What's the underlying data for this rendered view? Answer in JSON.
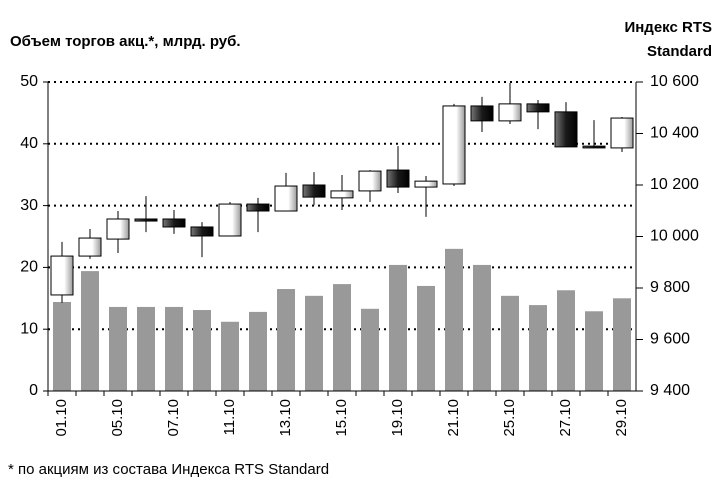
{
  "chart_data": {
    "type": "combo",
    "title": "Объем торгов акц.*, млрд. руб.",
    "y2_title": [
      "Индекс RTS",
      "Standard"
    ],
    "footnote": "* по акциям из состава Индекса RTS Standard",
    "categories": [
      "01.10",
      null,
      "05.10",
      null,
      "07.10",
      null,
      "11.10",
      null,
      "13.10",
      null,
      "15.10",
      null,
      "19.10",
      null,
      "21.10",
      null,
      "25.10",
      null,
      "27.10",
      null,
      "29.10"
    ],
    "ylim": [
      0,
      50
    ],
    "yticks": [
      0,
      10,
      20,
      30,
      40,
      50
    ],
    "y2lim": [
      9400,
      10600
    ],
    "y2ticks": [
      {
        "value": 9400,
        "label": "9 400"
      },
      {
        "value": 9600,
        "label": "9 600"
      },
      {
        "value": 9800,
        "label": "9 800"
      },
      {
        "value": 10000,
        "label": "10 000"
      },
      {
        "value": 10200,
        "label": "10 200"
      },
      {
        "value": 10400,
        "label": "10 400"
      },
      {
        "value": 10600,
        "label": "10 600"
      }
    ],
    "grid": true,
    "series": [
      {
        "type": "bar",
        "color": "#999999",
        "values": [
          14.4,
          19.4,
          13.6,
          13.6,
          13.6,
          13.1,
          11.2,
          12.8,
          16.5,
          15.4,
          17.3,
          13.3,
          20.4,
          17,
          23,
          20.4,
          15.4,
          13.9,
          16.3,
          12.9,
          15
        ]
      },
      {
        "type": "candlestick",
        "axis": "y2",
        "up_color": "#ffffff",
        "down_color": "#222222",
        "open": [
          9773,
          9924,
          9990,
          10068,
          10068,
          10037,
          10002,
          10126,
          10099,
          10200,
          10150,
          10177,
          10258,
          10192,
          10204,
          10507,
          10449,
          10515,
          10484,
          10351,
          10344
        ],
        "high": [
          9979,
          10029,
          10099,
          10157,
          10103,
          10056,
          10134,
          10150,
          10247,
          10250,
          10239,
          10258,
          10351,
          10235,
          10515,
          10542,
          10596,
          10530,
          10522,
          10452,
          10464
        ],
        "low": [
          9742,
          9913,
          9936,
          10017,
          10010,
          9920,
          10002,
          10017,
          10099,
          10122,
          10103,
          10134,
          10169,
          10076,
          10196,
          10406,
          10437,
          10417,
          10348,
          10344,
          10328
        ],
        "close": [
          9924,
          9994,
          10068,
          10060,
          10037,
          10002,
          10126,
          10099,
          10196,
          10153,
          10177,
          10254,
          10192,
          10215,
          10507,
          10449,
          10515,
          10484,
          10348,
          10344,
          10460
        ]
      }
    ]
  }
}
